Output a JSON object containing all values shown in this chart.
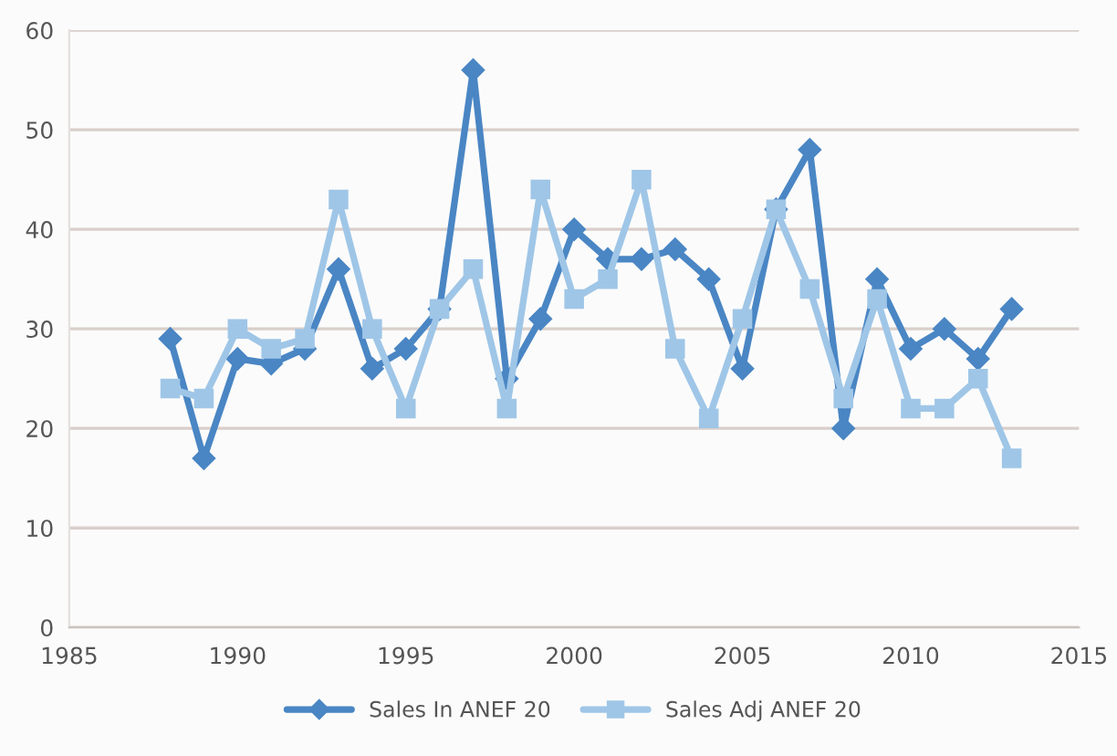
{
  "chart_data": {
    "type": "line",
    "x": [
      1988,
      1989,
      1990,
      1991,
      1992,
      1993,
      1994,
      1995,
      1996,
      1997,
      1998,
      1999,
      2000,
      2001,
      2002,
      2003,
      2004,
      2005,
      2006,
      2007,
      2008,
      2009,
      2010,
      2011,
      2012,
      2013
    ],
    "series": [
      {
        "name": "Sales In ANEF 20",
        "color": "#4a86c4",
        "marker": "diamond",
        "values": [
          29,
          17,
          27,
          26.5,
          28,
          36,
          26,
          28,
          32,
          56,
          25,
          31,
          40,
          37,
          37,
          38,
          35,
          26,
          42,
          48,
          20,
          35,
          28,
          30,
          27,
          32
        ]
      },
      {
        "name": "Sales Adj ANEF 20",
        "color": "#9fc6e7",
        "marker": "square",
        "values": [
          24,
          23,
          30,
          28,
          29,
          43,
          30,
          22,
          32,
          36,
          22,
          44,
          33,
          35,
          45,
          28,
          21,
          31,
          42,
          34,
          23,
          33,
          22,
          22,
          25,
          17
        ]
      }
    ],
    "xlim": [
      1985,
      2015
    ],
    "xticks": [
      1985,
      1990,
      1995,
      2000,
      2005,
      2010,
      2015
    ],
    "ylim": [
      0,
      60
    ],
    "yticks": [
      0,
      10,
      20,
      30,
      40,
      50,
      60
    ],
    "grid": "y",
    "legend": "bottom",
    "line_style": "solid"
  }
}
